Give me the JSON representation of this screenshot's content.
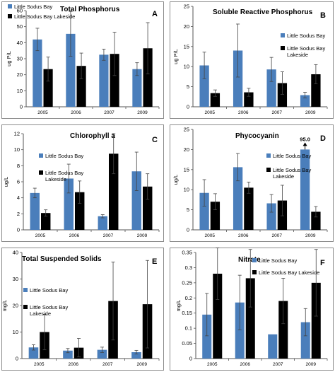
{
  "colors": {
    "series1": "#4a7ebb",
    "series2": "#000000",
    "axis": "#555555"
  },
  "chart_data": [
    {
      "type": "bar",
      "letter": "A",
      "title": "Total Phosphorus",
      "ylabel": "ug P/L",
      "categories": [
        "2005",
        "2006",
        "2007",
        "2009"
      ],
      "ylim": [
        0,
        60
      ],
      "yticks": [
        0,
        10,
        20,
        30,
        40,
        50,
        60
      ],
      "legend": [
        "Little Sodus Bay",
        "Little Sodus Bay Lakeside"
      ],
      "legend_position": "top-left",
      "series": [
        {
          "name": "Little Sodus Bay",
          "values": [
            42,
            45.5,
            32.5,
            23.5
          ],
          "err": [
            7,
            14,
            3.5,
            4
          ]
        },
        {
          "name": "Little Sodus Bay Lakeside",
          "values": [
            23.5,
            25.5,
            33,
            36.5
          ],
          "err": [
            7.5,
            8,
            13.5,
            16
          ]
        }
      ]
    },
    {
      "type": "bar",
      "letter": "B",
      "title": "Soluble Reactive Phosphorus",
      "ylabel": "ug P/L",
      "categories": [
        "2005",
        "2006",
        "2007",
        "2009"
      ],
      "ylim": [
        0,
        25
      ],
      "yticks": [
        0,
        5,
        10,
        15,
        20,
        25
      ],
      "legend": [
        "Little Sodus Bay",
        "Little Sodus Bay Lakeside"
      ],
      "legend_position": "top-right",
      "series": [
        {
          "name": "Little Sodus Bay",
          "values": [
            10.3,
            14,
            9.3,
            2.9
          ],
          "err": [
            3.3,
            6.6,
            3,
            0.7
          ]
        },
        {
          "name": "Little Sodus Bay Lakeside",
          "values": [
            3.4,
            3.6,
            5.9,
            8.1
          ],
          "err": [
            0.8,
            1,
            2.8,
            2.4
          ]
        }
      ]
    },
    {
      "type": "bar",
      "letter": "C",
      "title": "Chlorophyll a",
      "ylabel": "ug/L",
      "categories": [
        "2005",
        "2006",
        "2007",
        "2009"
      ],
      "ylim": [
        0,
        12
      ],
      "yticks": [
        0,
        2,
        4,
        6,
        8,
        10,
        12
      ],
      "legend": [
        "Little Sodus Bay",
        "Little Sodus Bay Lakeside"
      ],
      "legend_position": "top-left",
      "series": [
        {
          "name": "Little Sodus Bay",
          "values": [
            4.6,
            6.4,
            1.7,
            7.3
          ],
          "err": [
            0.6,
            1.8,
            0.2,
            2.4
          ]
        },
        {
          "name": "Little Sodus Bay Lakeside",
          "values": [
            2.1,
            4.7,
            9.5,
            5.4
          ],
          "err": [
            0.4,
            1.4,
            2.5,
            1.6
          ]
        }
      ]
    },
    {
      "type": "bar",
      "letter": "D",
      "title": "Phycocyanin",
      "ylabel": "ug/L",
      "categories": [
        "2005",
        "2006",
        "2007",
        "2009"
      ],
      "ylim": [
        0,
        25
      ],
      "yticks": [
        0,
        5,
        10,
        15,
        20,
        25
      ],
      "legend": [
        "Little Sodus Bay",
        "Little Sodus Bay Lakeside"
      ],
      "legend_position": "top-right",
      "annotation": {
        "text": "95.0",
        "category_index": 3
      },
      "series": [
        {
          "name": "Little Sodus Bay",
          "values": [
            9.2,
            15.6,
            6.6,
            20
          ],
          "err": [
            3.3,
            3.4,
            2.2,
            0
          ]
        },
        {
          "name": "Little Sodus Bay Lakeside",
          "values": [
            7,
            10.5,
            7.3,
            4.5
          ],
          "err": [
            2,
            1.4,
            3.8,
            1.3
          ]
        }
      ]
    },
    {
      "type": "bar",
      "letter": "E",
      "title": "Total Suspended Solids",
      "ylabel": "mg/L",
      "categories": [
        "2005",
        "2006",
        "2007",
        "2009"
      ],
      "ylim": [
        0,
        40
      ],
      "yticks": [
        0,
        10,
        20,
        30,
        40
      ],
      "legend": [
        "Little Sodus Bay",
        "Little Sodus Bay Lakeside"
      ],
      "legend_position": "center-left",
      "series": [
        {
          "name": "Little Sodus Bay",
          "values": [
            4.2,
            3,
            3.3,
            2.4
          ],
          "err": [
            1,
            0.8,
            1,
            0.7
          ]
        },
        {
          "name": "Little Sodus Bay Lakeside",
          "values": [
            10,
            4.1,
            21.7,
            20.5
          ],
          "err": [
            6.7,
            3.5,
            14.7,
            16.5
          ]
        }
      ]
    },
    {
      "type": "bar",
      "letter": "F",
      "title": "Nitrate",
      "ylabel": "mg/L",
      "categories": [
        "2005",
        "2006",
        "2007",
        "2009"
      ],
      "ylim": [
        0,
        0.35
      ],
      "yticks": [
        0,
        0.05,
        0.1,
        0.15,
        0.2,
        0.25,
        0.3,
        0.35
      ],
      "legend": [
        "Little Sodus Bay",
        "Little Sodus Bay Lakeside"
      ],
      "legend_position": "top-right",
      "series": [
        {
          "name": "Little Sodus Bay",
          "values": [
            0.145,
            0.185,
            0.08,
            0.12
          ],
          "err": [
            0.07,
            0.09,
            0,
            0.045
          ]
        },
        {
          "name": "Little Sodus Bay Lakeside",
          "values": [
            0.28,
            0.265,
            0.19,
            0.25
          ],
          "err": [
            0.085,
            0.095,
            0.075,
            0.11
          ]
        }
      ]
    }
  ]
}
